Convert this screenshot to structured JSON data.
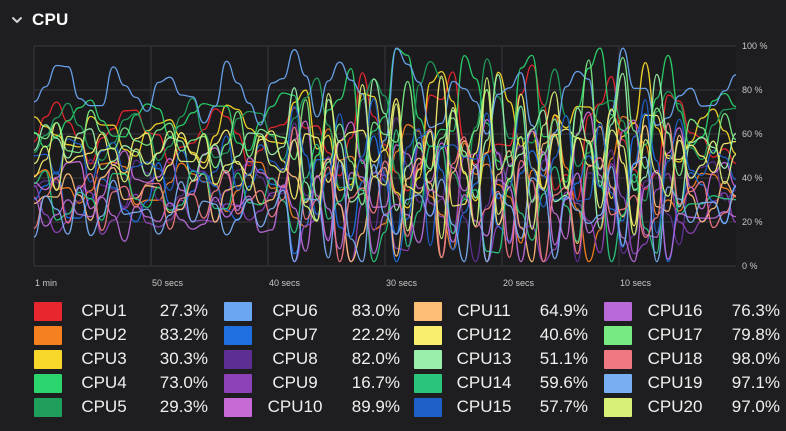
{
  "panel": {
    "title": "CPU"
  },
  "chart_data": {
    "type": "line",
    "title": "CPU",
    "x_ticks": [
      "1 min",
      "50 secs",
      "40 secs",
      "30 secs",
      "20 secs",
      "10 secs"
    ],
    "x_range_seconds_ago": [
      60,
      0
    ],
    "y_ticks": [
      "100 %",
      "80 %",
      "60 %",
      "40 %",
      "20 %",
      "0 %"
    ],
    "ylim": [
      0,
      100
    ],
    "grid": true,
    "series": [
      {
        "name": "CPU1",
        "color": "#e8262e",
        "value": "27.3%"
      },
      {
        "name": "CPU2",
        "color": "#f58020",
        "value": "83.2%"
      },
      {
        "name": "CPU3",
        "color": "#f7d82a",
        "value": "30.3%"
      },
      {
        "name": "CPU4",
        "color": "#2bd46c",
        "value": "73.0%"
      },
      {
        "name": "CPU5",
        "color": "#1f9e5c",
        "value": "29.3%"
      },
      {
        "name": "CPU6",
        "color": "#6aa6f2",
        "value": "83.0%"
      },
      {
        "name": "CPU7",
        "color": "#1f6fe0",
        "value": "22.2%"
      },
      {
        "name": "CPU8",
        "color": "#5e2f92",
        "value": "82.0%"
      },
      {
        "name": "CPU9",
        "color": "#8e42b8",
        "value": "16.7%"
      },
      {
        "name": "CPU10",
        "color": "#c66ad6",
        "value": "89.9%"
      },
      {
        "name": "CPU11",
        "color": "#ffbe78",
        "value": "64.9%"
      },
      {
        "name": "CPU12",
        "color": "#faee6e",
        "value": "40.6%"
      },
      {
        "name": "CPU13",
        "color": "#9af0aa",
        "value": "51.1%"
      },
      {
        "name": "CPU14",
        "color": "#2ac47c",
        "value": "59.6%"
      },
      {
        "name": "CPU15",
        "color": "#1f60c8",
        "value": "57.7%"
      },
      {
        "name": "CPU16",
        "color": "#b96ad8",
        "value": "76.3%"
      },
      {
        "name": "CPU17",
        "color": "#78ea82",
        "value": "79.8%"
      },
      {
        "name": "CPU18",
        "color": "#f07882",
        "value": "98.0%"
      },
      {
        "name": "CPU19",
        "color": "#78aef2",
        "value": "97.1%"
      },
      {
        "name": "CPU20",
        "color": "#d8f078",
        "value": "97.0%"
      }
    ]
  }
}
